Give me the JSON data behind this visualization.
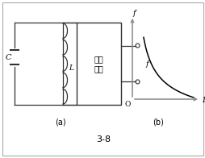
{
  "background_color": "#ffffff",
  "border_color": "#aaaaaa",
  "fig_width": 2.55,
  "fig_height": 1.96,
  "dpi": 100,
  "label_a": "(a)",
  "label_b": "(b)",
  "figure_label": "3-8",
  "box_label": "振荡\n回路",
  "output_label": "f",
  "graph_ylabel": "f",
  "graph_xlabel": "L",
  "graph_origin": "O",
  "curve_color": "#000000",
  "axis_color": "#888888",
  "component_color": "#333333",
  "circuit_box_color": "#333333"
}
